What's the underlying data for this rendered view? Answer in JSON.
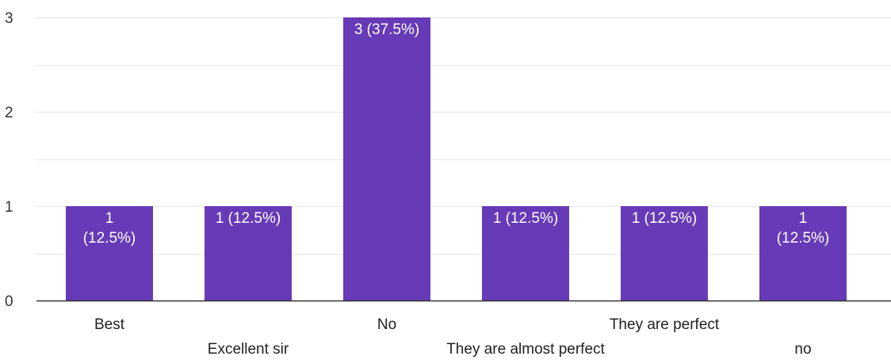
{
  "chart_data": {
    "type": "bar",
    "categories": [
      "Best",
      "Excellent sir",
      "No",
      "They are almost perfect",
      "They are perfect",
      "no"
    ],
    "values": [
      1,
      1,
      3,
      1,
      1,
      1
    ],
    "data_labels": [
      [
        "1",
        "(12.5%)"
      ],
      [
        "1 (12.5%)"
      ],
      [
        "3 (37.5%)"
      ],
      [
        "1 (12.5%)"
      ],
      [
        "1 (12.5%)"
      ],
      [
        "1",
        "(12.5%)"
      ]
    ],
    "y_ticks": [
      "0",
      "1",
      "2",
      "3"
    ],
    "ylim": [
      0,
      3
    ],
    "grid": true,
    "legend": "none",
    "bar_color": "#673ab7",
    "grid_color": "#e6e6e6",
    "axis_color": "#333333"
  }
}
